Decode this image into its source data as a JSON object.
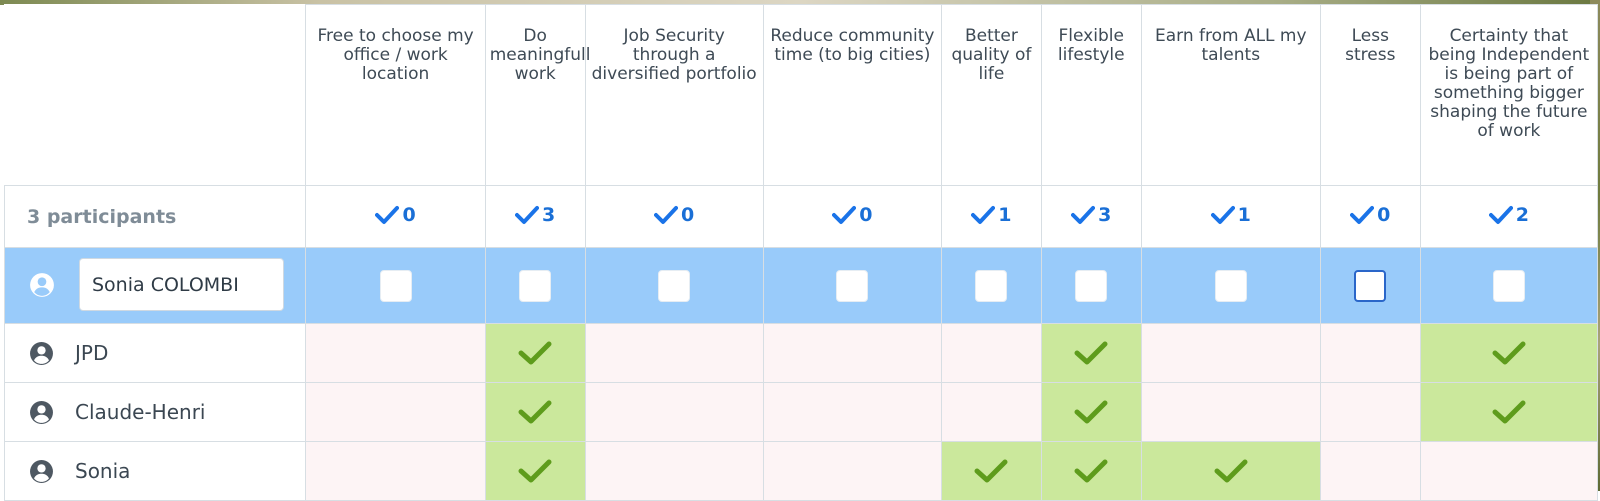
{
  "options": [
    {
      "label": "Free to choose my office / work location",
      "count": "0"
    },
    {
      "label": "Do meaningfull work",
      "count": "3"
    },
    {
      "label": "Job Security through a diversified portfolio",
      "count": "0"
    },
    {
      "label": "Reduce community time (to big cities)",
      "count": "0"
    },
    {
      "label": "Better quality of life",
      "count": "1"
    },
    {
      "label": "Flexible lifestyle",
      "count": "3"
    },
    {
      "label": "Earn from ALL my talents",
      "count": "1"
    },
    {
      "label": "Less stress",
      "count": "0"
    },
    {
      "label": "Certainty that being Independent is being part of something bigger shaping the future of work",
      "count": "2"
    }
  ],
  "participants_label": "3 participants",
  "edit_row": {
    "name_value": "Sonia COLOMBI"
  },
  "voters": [
    {
      "name": "JPD",
      "votes": [
        false,
        true,
        false,
        false,
        false,
        true,
        false,
        false,
        true
      ]
    },
    {
      "name": "Claude-Henri",
      "votes": [
        false,
        true,
        false,
        false,
        false,
        true,
        false,
        false,
        true
      ]
    },
    {
      "name": "Sonia",
      "votes": [
        false,
        true,
        false,
        false,
        true,
        true,
        true,
        false,
        false
      ]
    }
  ],
  "colors": {
    "yes": "#cbe89c",
    "no": "#fdf4f5",
    "edit_row": "#99cbfa",
    "check": "#5e9c1c",
    "count_check": "#1a73e8"
  },
  "icons": {
    "count": "checkmark-icon",
    "vote": "checkmark-icon",
    "avatar": "user-circle-icon"
  }
}
